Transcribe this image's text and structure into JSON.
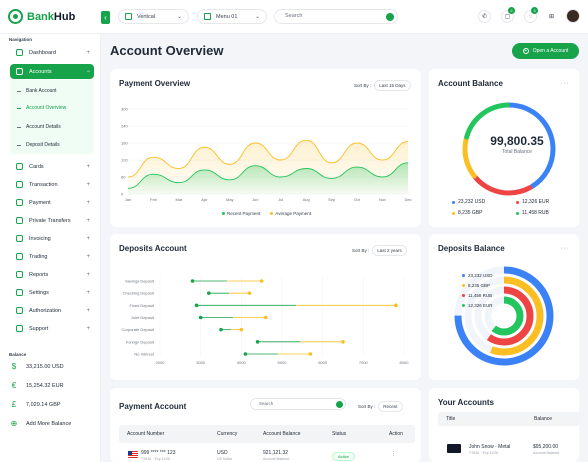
{
  "app": {
    "name_a": "Bank",
    "name_b": "Hub"
  },
  "topbar": {
    "layout_select": "Vertical",
    "menu_select": "Menu 01",
    "search_placeholder": "Search",
    "notif_badge": "2",
    "msg_badge": "3"
  },
  "sidebar": {
    "nav_section": "Navigation",
    "items": [
      {
        "label": "Dashboard"
      },
      {
        "label": "Accounts"
      },
      {
        "label": "Cards"
      },
      {
        "label": "Transaction"
      },
      {
        "label": "Payment"
      },
      {
        "label": "Private Transfers"
      },
      {
        "label": "Invoicing"
      },
      {
        "label": "Trading"
      },
      {
        "label": "Reports"
      },
      {
        "label": "Settings"
      },
      {
        "label": "Authorization"
      },
      {
        "label": "Support"
      }
    ],
    "subitems": [
      {
        "label": "Bank Account"
      },
      {
        "label": "Account Overview"
      },
      {
        "label": "Account Details"
      },
      {
        "label": "Deposit Details"
      }
    ],
    "balance_section": "Balance",
    "balances": [
      {
        "symbol": "$",
        "label": "33,215.00 USD"
      },
      {
        "symbol": "€",
        "label": "15,254.32 EUR"
      },
      {
        "symbol": "£",
        "label": "7,029.14 GBP"
      }
    ],
    "add_more": "Add More Balance"
  },
  "page": {
    "title": "Account Overview",
    "open_account": "Open a Account"
  },
  "payment_overview": {
    "title": "Payment Overview",
    "sort_label": "Sort By :",
    "sort_value": "Last 15 Days"
  },
  "chart_data": [
    {
      "type": "area",
      "title": "Payment Overview",
      "categories": [
        "Jan",
        "Feb",
        "Mar",
        "Apr",
        "May",
        "Jun",
        "Jul",
        "Aug",
        "Sep",
        "Oct",
        "Nov",
        "Dec"
      ],
      "ylim": [
        0,
        300
      ],
      "yticks": [
        "0",
        "60",
        "120",
        "180",
        "240",
        "300"
      ],
      "series": [
        {
          "name": "Recent Payment",
          "color": "#22c55e",
          "values": [
            20,
            70,
            40,
            85,
            50,
            100,
            60,
            90,
            55,
            95,
            60,
            110
          ]
        },
        {
          "name": "Average Payment",
          "color": "#fbbf24",
          "values": [
            60,
            130,
            90,
            165,
            105,
            180,
            120,
            190,
            110,
            180,
            120,
            185
          ]
        }
      ],
      "legend": "bottom"
    },
    {
      "type": "bar",
      "title": "Deposits Account",
      "categories": [
        "Savings Deposit",
        "Checking Deposit",
        "Fixed Deposit",
        "Joint Deposit",
        "Corporate Deposit",
        "Foreign Deposit",
        "No Interest"
      ],
      "xticks": [
        "2000",
        "3000",
        "4000",
        "5000",
        "6000",
        "7000",
        "8000"
      ],
      "xlim": [
        2000,
        8000
      ],
      "series": [
        {
          "name": "Start",
          "color": "#16a34a",
          "values": [
            2800,
            3200,
            2900,
            3000,
            3500,
            4400,
            4100
          ]
        },
        {
          "name": "End",
          "color": "#fbbf24",
          "values": [
            4500,
            4200,
            7800,
            4600,
            4000,
            6500,
            5700
          ]
        }
      ]
    },
    {
      "type": "pie",
      "title": "Account Balance",
      "categories": [
        "USD",
        "EUR",
        "GBP",
        "RUB"
      ],
      "values": [
        23232,
        12326,
        8235,
        11458
      ],
      "colors": [
        "#3b82f6",
        "#ef4444",
        "#fbbf24",
        "#22c55e"
      ]
    },
    {
      "type": "pie",
      "title": "Deposits Balance",
      "categories": [
        "USD",
        "GBP",
        "RUB",
        "EUR"
      ],
      "values": [
        23232,
        8235,
        11458,
        12326
      ],
      "colors": [
        "#3b82f6",
        "#fbbf24",
        "#ef4444",
        "#22c55e"
      ]
    }
  ],
  "sort_deposits": {
    "label": "Sort By :",
    "value": "Last 2 years"
  },
  "account_balance": {
    "title": "Account Balance",
    "amount": "99,800.35",
    "amount_label": "Total Balance",
    "legend": [
      {
        "label": "23,232 USD",
        "color": "#3b82f6"
      },
      {
        "label": "12,326 EUR",
        "color": "#ef4444"
      },
      {
        "label": "8,235 GBP",
        "color": "#fbbf24"
      },
      {
        "label": "11,458 RUB",
        "color": "#22c55e"
      }
    ]
  },
  "deposits_balance": {
    "title": "Deposits Balance",
    "legend": [
      {
        "label": "23,232 USD",
        "color": "#3b82f6"
      },
      {
        "label": "8,235 GBP",
        "color": "#fbbf24"
      },
      {
        "label": "11,458 RUB",
        "color": "#ef4444"
      },
      {
        "label": "12,326 EUR",
        "color": "#22c55e"
      }
    ]
  },
  "payment_account": {
    "title": "Payment Account",
    "search_placeholder": "Search",
    "sort_label": "Sort By :",
    "sort_value": "Recent",
    "headers": [
      "Account Number",
      "Currency",
      "Account Balance",
      "Status",
      "Action"
    ],
    "rows": [
      {
        "number": "999 **** *** 123",
        "sub": "**9181 · Exp 11/26",
        "currency": "USD",
        "currency_sub": "US Dollar",
        "balance": "921,121.32",
        "balance_sub": "Account Balance",
        "status": "Active",
        "action": "⋮"
      }
    ]
  },
  "your_accounts": {
    "title": "Your Accounts",
    "headers": [
      "Title",
      "Balance"
    ],
    "rows": [
      {
        "name": "John Snow - Metal",
        "sub": "**9181 · Exp 11/26",
        "balance": "$95,200.00",
        "balance_sub": "Account Balance"
      }
    ]
  }
}
